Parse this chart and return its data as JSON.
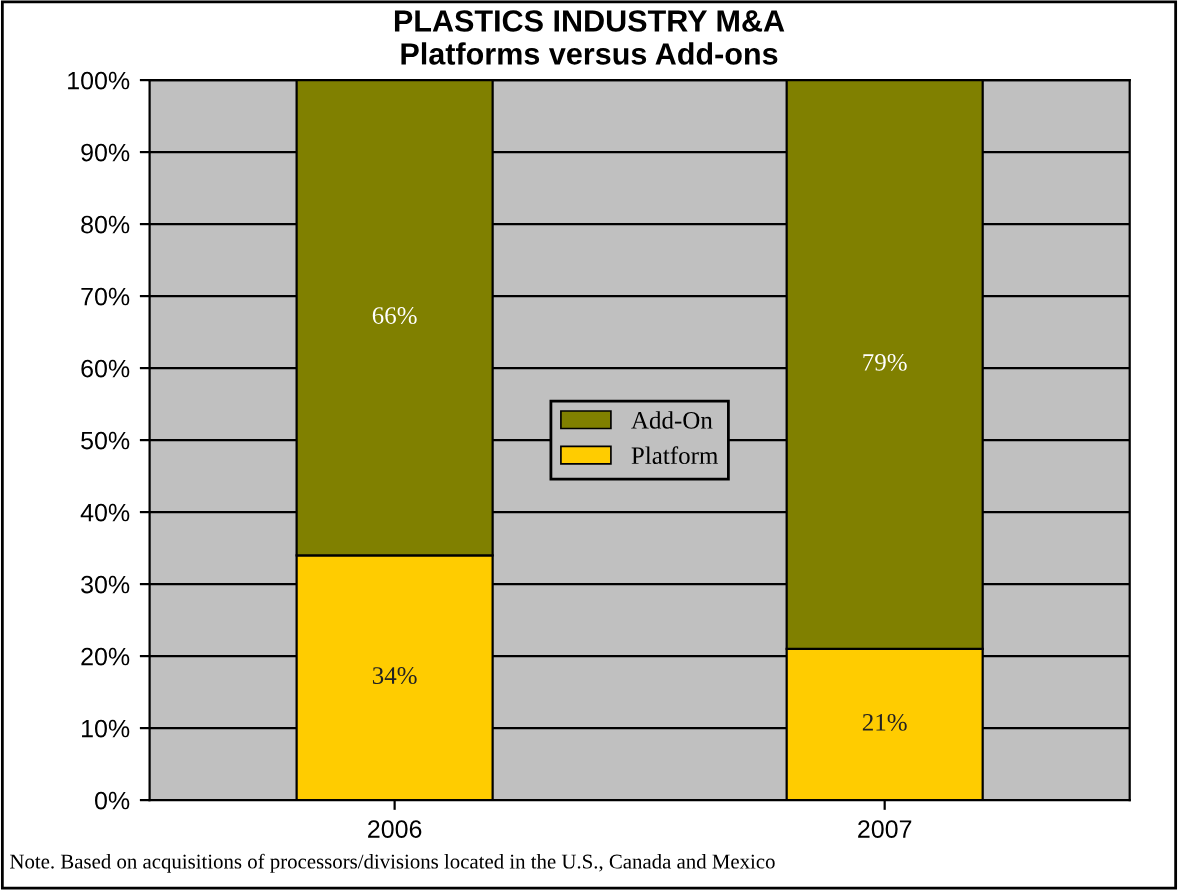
{
  "chart_data": {
    "type": "bar",
    "title": "PLASTICS INDUSTRY M&A\nPlatforms versus Add-ons",
    "categories": [
      "2006",
      "2007"
    ],
    "series": [
      {
        "name": "Platform",
        "color": "#ffcc00",
        "values": [
          34,
          21
        ],
        "value_labels": [
          "34%",
          "21%"
        ]
      },
      {
        "name": "Add-On",
        "color": "#808000",
        "values": [
          66,
          79
        ],
        "value_labels": [
          "66%",
          "79%"
        ]
      }
    ],
    "stacked": true,
    "ylim": [
      0,
      100
    ],
    "yticks": [
      {
        "value": 0,
        "label": "0%"
      },
      {
        "value": 10,
        "label": "10%"
      },
      {
        "value": 20,
        "label": "20%"
      },
      {
        "value": 30,
        "label": "30%"
      },
      {
        "value": 40,
        "label": "40%"
      },
      {
        "value": 50,
        "label": "50%"
      },
      {
        "value": 60,
        "label": "60%"
      },
      {
        "value": 70,
        "label": "70%"
      },
      {
        "value": 80,
        "label": "80%"
      },
      {
        "value": 90,
        "label": "90%"
      },
      {
        "value": 100,
        "label": "100%"
      }
    ],
    "grid": "y",
    "legend": "center",
    "annotations": [
      "Note. Based on acquisitions of processors/divisions located in the U.S., Canada and Mexico"
    ]
  }
}
